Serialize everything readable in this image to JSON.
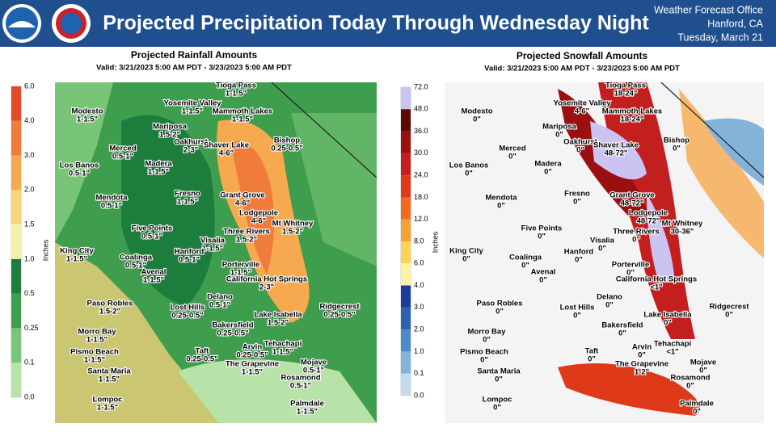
{
  "header": {
    "title": "Projected Precipitation Today Through Wednesday Night",
    "office": "Weather Forecast Office",
    "location": "Hanford, CA",
    "date": "Tuesday, March 21"
  },
  "rainfall_map": {
    "title": "Projected Rainfall Amounts",
    "valid": "Valid: 3/21/2023 5:00 AM PDT - 3/23/2023 5:00 AM PDT",
    "unit": "Inches",
    "colorbar": {
      "ticks": [
        "6.0",
        "4.0",
        "3.0",
        "2.0",
        "1.5",
        "1.0",
        "0.5",
        "0.25",
        "0.1",
        "0.0"
      ],
      "colors": [
        "#e4482a",
        "#f07c3c",
        "#f6a94e",
        "#fbd47e",
        "#f6f1a8",
        "#1d7d3c",
        "#3f9d4e",
        "#79c577",
        "#b7e2a8"
      ]
    }
  },
  "snowfall_map": {
    "title": "Projected Snowfall Amounts",
    "valid": "Valid: 3/21/2023 5:00 AM PDT - 3/23/2023 5:00 AM PDT",
    "unit": "Inches",
    "colorbar": {
      "ticks": [
        "72.0",
        "48.0",
        "36.0",
        "30.0",
        "24.0",
        "18.0",
        "12.0",
        "8.0",
        "6.0",
        "4.0",
        "3.0",
        "2.0",
        "1.0",
        "0.1",
        "0.0"
      ],
      "colors": [
        "#cbc3f2",
        "#5e0808",
        "#9a1010",
        "#c41f1f",
        "#de3a1a",
        "#ef6a1c",
        "#f5a232",
        "#fad454",
        "#fdf1a2",
        "#1b3c9c",
        "#2c62b2",
        "#4c8aca",
        "#84b3da",
        "#c4dbee"
      ]
    }
  },
  "towns": [
    {
      "name": "Tioga Pass",
      "rainfall": "1-1.5\"",
      "snowfall": "18-24\""
    },
    {
      "name": "Yosemite Valley",
      "rainfall": "1-1.5\"",
      "snowfall": "4-6\""
    },
    {
      "name": "Modesto",
      "rainfall": "1-1.5\"",
      "snowfall": "0\""
    },
    {
      "name": "Mammoth Lakes",
      "rainfall": "1-1.5\"",
      "snowfall": "18-24\""
    },
    {
      "name": "Mariposa",
      "rainfall": "1.5-2\"",
      "snowfall": "0\""
    },
    {
      "name": "Oakhurst",
      "rainfall": "2-3\"",
      "snowfall": "0\""
    },
    {
      "name": "Shaver Lake",
      "rainfall": "4-6\"",
      "snowfall": "48-72\""
    },
    {
      "name": "Bishop",
      "rainfall": "0.25-0.5\"",
      "snowfall": "0\""
    },
    {
      "name": "Merced",
      "rainfall": "0.5-1\"",
      "snowfall": "0\""
    },
    {
      "name": "Madera",
      "rainfall": "1-1.5\"",
      "snowfall": "0\""
    },
    {
      "name": "Los Banos",
      "rainfall": "0.5-1\"",
      "snowfall": "0\""
    },
    {
      "name": "Fresno",
      "rainfall": "1-1.5\"",
      "snowfall": "0\""
    },
    {
      "name": "Grant Grove",
      "rainfall": "4-6\"",
      "snowfall": "48-72\""
    },
    {
      "name": "Mendota",
      "rainfall": "0.5-1\"",
      "snowfall": "0\""
    },
    {
      "name": "Lodgepole",
      "rainfall": "4-6\"",
      "snowfall": "48-72\""
    },
    {
      "name": "Mt Whitney",
      "rainfall": "1.5-2\"",
      "snowfall": "30-36\""
    },
    {
      "name": "Three Rivers",
      "rainfall": "1.5-2\"",
      "snowfall": "0\""
    },
    {
      "name": "Five Points",
      "rainfall": "0.5-1\"",
      "snowfall": "0\""
    },
    {
      "name": "Visalia",
      "rainfall": "1-1.5\"",
      "snowfall": "0\""
    },
    {
      "name": "King City",
      "rainfall": "1-1.5\"",
      "snowfall": "0\""
    },
    {
      "name": "Coalinga",
      "rainfall": "0.5-1\"",
      "snowfall": "0\""
    },
    {
      "name": "Hanford",
      "rainfall": "0.5-1\"",
      "snowfall": "0\""
    },
    {
      "name": "Avenal",
      "rainfall": "1-1.5\"",
      "snowfall": "0\""
    },
    {
      "name": "Porterville",
      "rainfall": "1-1.5\"",
      "snowfall": "0\""
    },
    {
      "name": "California Hot Springs",
      "rainfall": "2-3\"",
      "snowfall": "<1\""
    },
    {
      "name": "Delano",
      "rainfall": "0.5-1\"",
      "snowfall": "0\""
    },
    {
      "name": "Paso Robles",
      "rainfall": "1.5-2\"",
      "snowfall": "0\""
    },
    {
      "name": "Lost Hills",
      "rainfall": "0.25-0.5\"",
      "snowfall": "0\""
    },
    {
      "name": "Ridgecrest",
      "rainfall": "0.25-0.5\"",
      "snowfall": "0\""
    },
    {
      "name": "Lake Isabella",
      "rainfall": "1.5-2\"",
      "snowfall": "0\""
    },
    {
      "name": "Bakersfield",
      "rainfall": "0.25-0.5\"",
      "snowfall": "0\""
    },
    {
      "name": "Morro Bay",
      "rainfall": "1-1.5\"",
      "snowfall": "0\""
    },
    {
      "name": "Tehachapi",
      "rainfall": "1-1.5\"",
      "snowfall": "<1\""
    },
    {
      "name": "Arvin",
      "rainfall": "0.25-0.5\"",
      "snowfall": "0\""
    },
    {
      "name": "Pismo Beach",
      "rainfall": "1-1.5\"",
      "snowfall": "0\""
    },
    {
      "name": "Taft",
      "rainfall": "0.25-0.5\"",
      "snowfall": "0\""
    },
    {
      "name": "Mojave",
      "rainfall": "0.5-1\"",
      "snowfall": "0\""
    },
    {
      "name": "The Grapevine",
      "rainfall": "1-1.5\"",
      "snowfall": "1-2\""
    },
    {
      "name": "Santa Maria",
      "rainfall": "1-1.5\"",
      "snowfall": "0\""
    },
    {
      "name": "Rosamond",
      "rainfall": "0.5-1\"",
      "snowfall": "0\""
    },
    {
      "name": "Lompoc",
      "rainfall": "1-1.5\"",
      "snowfall": "0\""
    },
    {
      "name": "Palmdale",
      "rainfall": "1-1.5\"",
      "snowfall": "0\""
    }
  ]
}
